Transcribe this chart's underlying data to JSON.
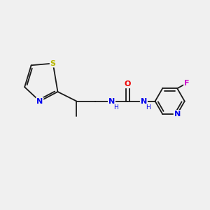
{
  "bg_color": "#f0f0f0",
  "bond_color": "#1a1a1a",
  "bond_width": 1.3,
  "atom_colors": {
    "S": "#b8b800",
    "N": "#0000ee",
    "O": "#ee0000",
    "F": "#cc00cc",
    "C": "#1a1a1a"
  },
  "font_size_atoms": 8.0,
  "font_size_H": 6.5,
  "xlim": [
    0,
    11
  ],
  "ylim": [
    0,
    10
  ]
}
